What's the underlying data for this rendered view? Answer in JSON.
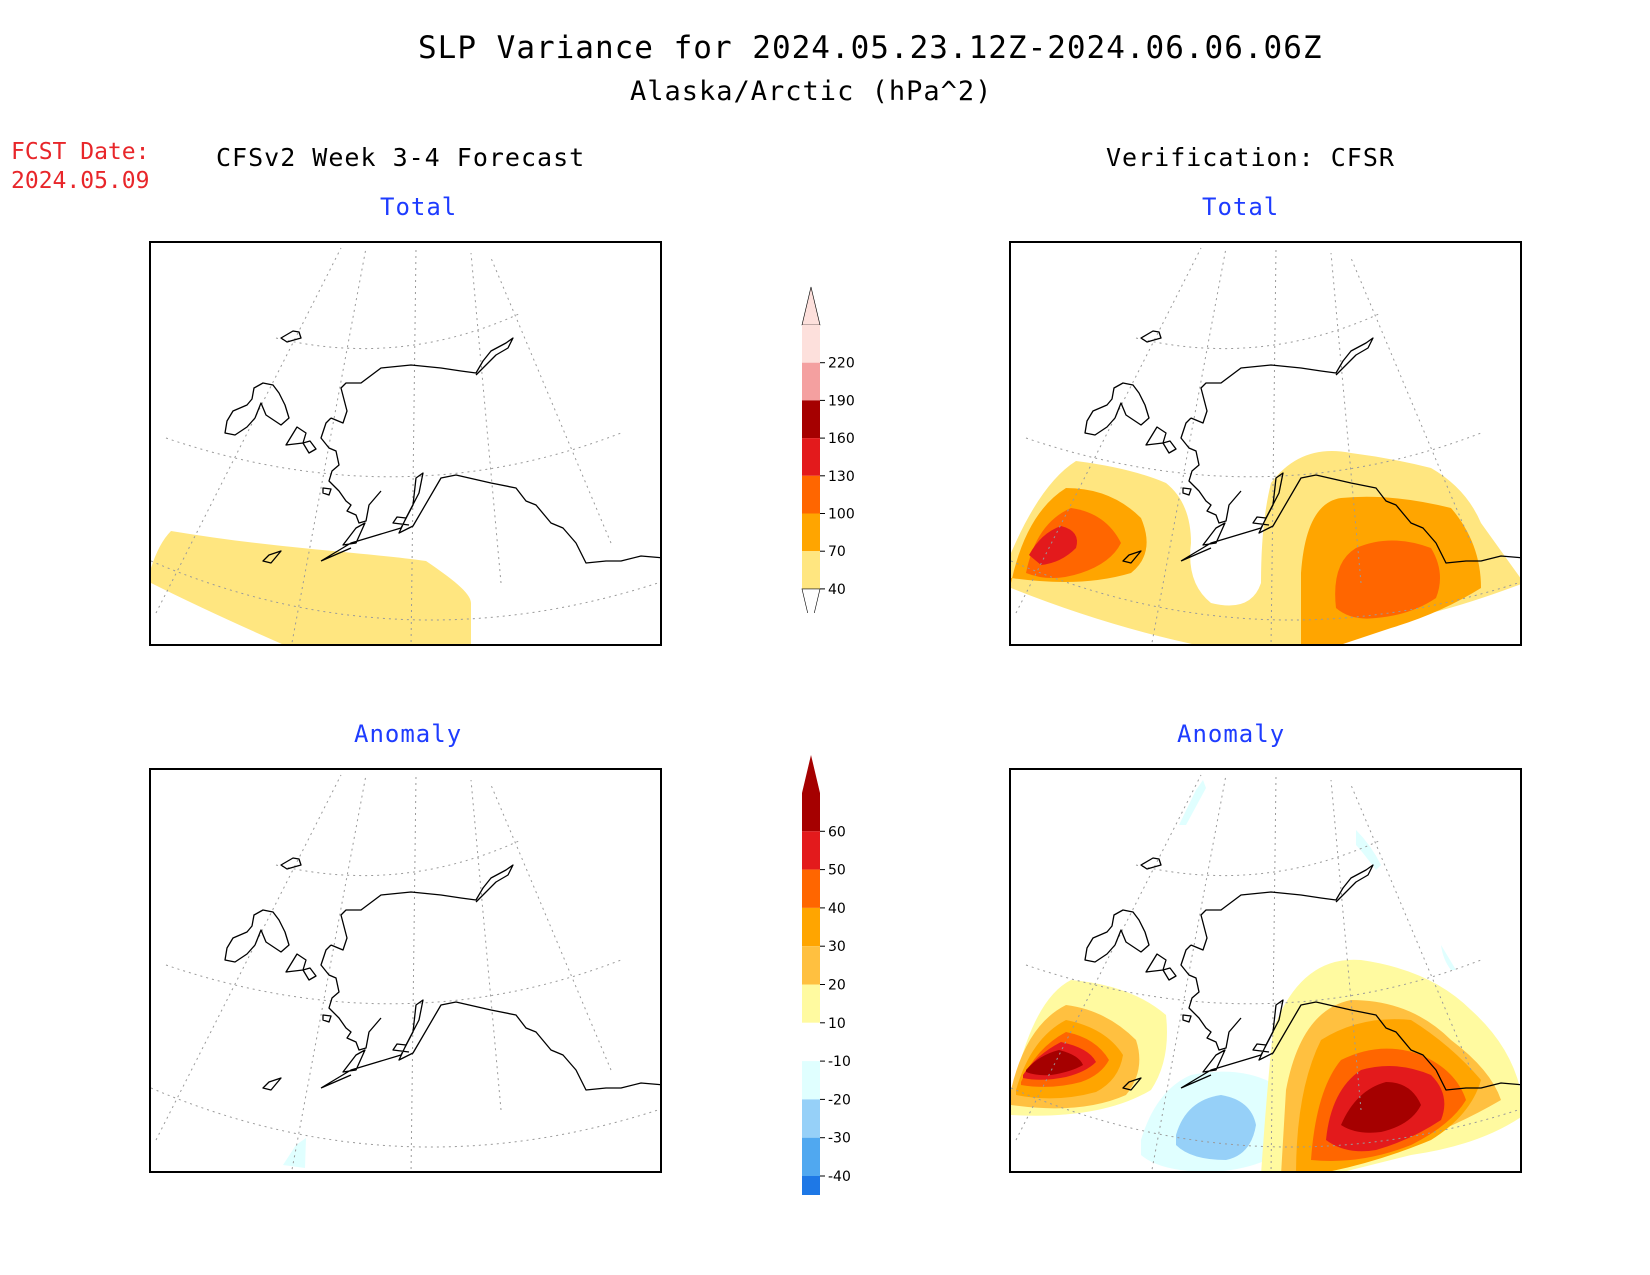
{
  "header": {
    "title": "SLP Variance for 2024.05.23.12Z-2024.06.06.06Z",
    "subtitle": "Alaska/Arctic (hPa^2)",
    "fcst_label": "FCST Date:",
    "fcst_date": "2024.05.09",
    "left_heading": "CFSv2 Week 3-4 Forecast",
    "right_heading": "Verification: CFSR"
  },
  "panels": {
    "top_left_title": "Total",
    "top_right_title": "Total",
    "bottom_left_title": "Anomaly",
    "bottom_right_title": "Anomaly"
  },
  "colorbar_total": {
    "labels": [
      "220",
      "190",
      "160",
      "130",
      "100",
      "70",
      "40"
    ],
    "colors": [
      "#fde0dc",
      "#f4a0a0",
      "#a50000",
      "#e31a1c",
      "#ff6600",
      "#ffa500",
      "#ffe680"
    ]
  },
  "colorbar_anomaly": {
    "labels": [
      "60",
      "50",
      "40",
      "30",
      "20",
      "10",
      "-10",
      "-20",
      "-30",
      "-40"
    ],
    "colors": [
      "#a50000",
      "#e31a1c",
      "#ff6600",
      "#ffa500",
      "#ffc040",
      "#fffaa0",
      "#ffffff",
      "#e0ffff",
      "#96d0f8",
      "#50a8f0",
      "#1e78e6"
    ]
  },
  "colors": {
    "coast": "#000000",
    "grid": "#9a9a9a",
    "panel_title": "#1e3cff",
    "fcst_text": "#e8262a"
  }
}
